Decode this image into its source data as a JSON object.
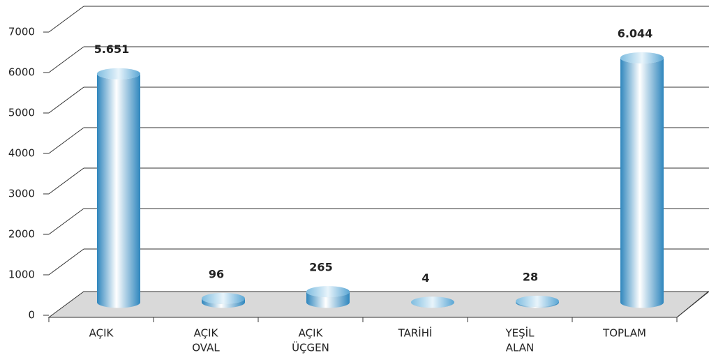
{
  "chart_data": {
    "type": "bar",
    "categories": [
      [
        "AÇIK"
      ],
      [
        "AÇIK",
        "OVAL"
      ],
      [
        "AÇIK",
        "ÜÇGEN"
      ],
      [
        "TARİHİ"
      ],
      [
        "YEŞİL",
        "ALAN"
      ],
      [
        "TOPLAM"
      ]
    ],
    "values": [
      5651,
      96,
      265,
      4,
      28,
      6044
    ],
    "value_labels": [
      "5.651",
      "96",
      "265",
      "4",
      "28",
      "6.044"
    ],
    "color": "#3a8fc4",
    "ylim": [
      0,
      7000
    ],
    "yticks": [
      0,
      1000,
      2000,
      3000,
      4000,
      5000,
      6000,
      7000
    ],
    "grid": true
  }
}
